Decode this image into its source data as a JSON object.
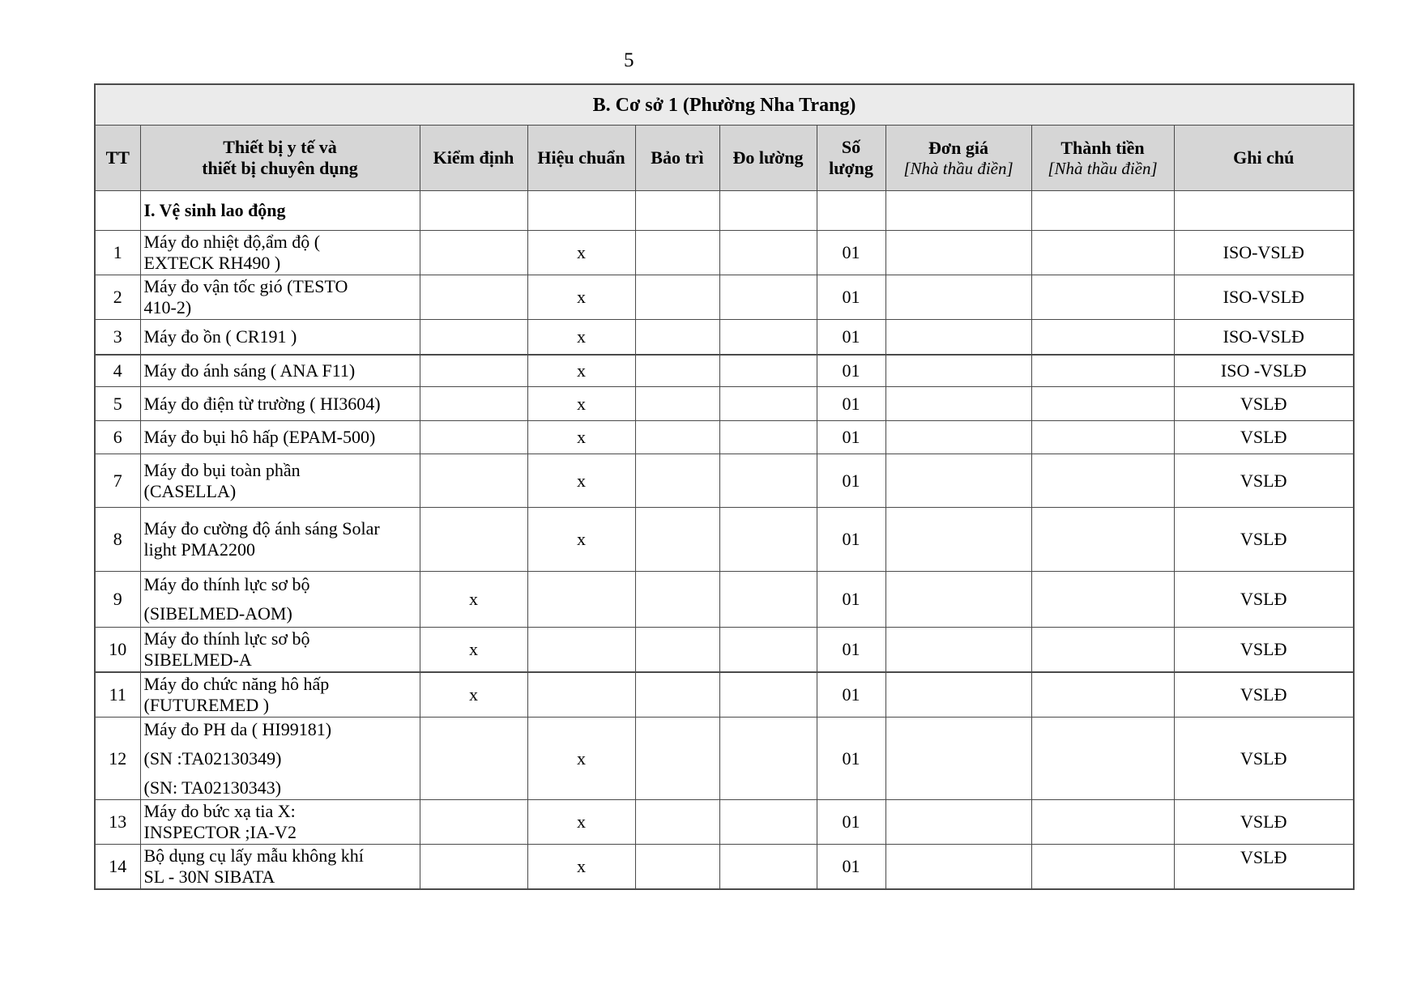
{
  "page": {
    "number": "5"
  },
  "banner": {
    "title": "B. Cơ sở 1 (Phường Nha Trang)"
  },
  "table": {
    "headers": {
      "tt": "TT",
      "device_line1": "Thiết bị y tế và",
      "device_line2": "thiết bị chuyên dụng",
      "kiem_dinh": "Kiểm định",
      "hieu_chuan": "Hiệu chuẩn",
      "bao_tri": "Bảo trì",
      "do_luong": "Đo lường",
      "so_luong_line1": "Số",
      "so_luong_line2": "lượng",
      "don_gia": "Đơn giá",
      "don_gia_sub": "[Nhà thầu điền]",
      "thanh_tien": "Thành tiền",
      "thanh_tien_sub": "[Nhà thầu điền]",
      "ghi_chu": "Ghi chú"
    },
    "section_title": "I. Vệ sinh lao động",
    "rows": [
      {
        "tt": "1",
        "device_lines": [
          "Máy đo nhiệt độ,ẩm độ (",
          "EXTECK RH490 )"
        ],
        "kiem_dinh": "",
        "hieu_chuan": "x",
        "bao_tri": "",
        "do_luong": "",
        "so_luong": "01",
        "don_gia": "",
        "thanh_tien": "",
        "ghi_chu": "ISO-VSLĐ"
      },
      {
        "tt": "2",
        "device_lines": [
          "Máy đo vận tốc gió (TESTO",
          "410-2)"
        ],
        "kiem_dinh": "",
        "hieu_chuan": "x",
        "bao_tri": "",
        "do_luong": "",
        "so_luong": "01",
        "don_gia": "",
        "thanh_tien": "",
        "ghi_chu": "ISO-VSLĐ"
      },
      {
        "tt": "3",
        "device_lines": [
          "Máy đo ồn ( CR191 )"
        ],
        "kiem_dinh": "",
        "hieu_chuan": "x",
        "bao_tri": "",
        "do_luong": "",
        "so_luong": "01",
        "don_gia": "",
        "thanh_tien": "",
        "ghi_chu": "ISO-VSLĐ"
      },
      {
        "tt": "4",
        "device_lines": [
          "Máy đo ánh sáng ( ANA F11)"
        ],
        "kiem_dinh": "",
        "hieu_chuan": "x",
        "bao_tri": "",
        "do_luong": "",
        "so_luong": "01",
        "don_gia": "",
        "thanh_tien": "",
        "ghi_chu": "ISO -VSLĐ"
      },
      {
        "tt": "5",
        "device_lines": [
          "Máy đo điện từ trường ( HI3604)"
        ],
        "kiem_dinh": "",
        "hieu_chuan": "x",
        "bao_tri": "",
        "do_luong": "",
        "so_luong": "01",
        "don_gia": "",
        "thanh_tien": "",
        "ghi_chu": "VSLĐ"
      },
      {
        "tt": "6",
        "device_lines": [
          "Máy đo bụi hô hấp (EPAM-500)"
        ],
        "kiem_dinh": "",
        "hieu_chuan": "x",
        "bao_tri": "",
        "do_luong": "",
        "so_luong": "01",
        "don_gia": "",
        "thanh_tien": "",
        "ghi_chu": "VSLĐ"
      },
      {
        "tt": "7",
        "device_lines": [
          "Máy đo bụi toàn phần",
          "(CASELLA)"
        ],
        "kiem_dinh": "",
        "hieu_chuan": "x",
        "bao_tri": "",
        "do_luong": "",
        "so_luong": "01",
        "don_gia": "",
        "thanh_tien": "",
        "ghi_chu": "VSLĐ"
      },
      {
        "tt": "8",
        "device_lines": [
          "Máy đo cường độ ánh sáng Solar",
          "light PMA2200"
        ],
        "kiem_dinh": "",
        "hieu_chuan": "x",
        "bao_tri": "",
        "do_luong": "",
        "so_luong": "01",
        "don_gia": "",
        "thanh_tien": "",
        "ghi_chu": "VSLĐ"
      },
      {
        "tt": "9",
        "device_lines": [
          "Máy đo thính lực sơ bộ",
          "",
          "(SIBELMED-AOM)"
        ],
        "kiem_dinh": "x",
        "hieu_chuan": "",
        "bao_tri": "",
        "do_luong": "",
        "so_luong": "01",
        "don_gia": "",
        "thanh_tien": "",
        "ghi_chu": "VSLĐ"
      },
      {
        "tt": "10",
        "device_lines": [
          "Máy đo thính lực sơ bộ",
          "SIBELMED-A"
        ],
        "kiem_dinh": "x",
        "hieu_chuan": "",
        "bao_tri": "",
        "do_luong": "",
        "so_luong": "01",
        "don_gia": "",
        "thanh_tien": "",
        "ghi_chu": "VSLĐ"
      },
      {
        "tt": "11",
        "device_lines": [
          "Máy đo chức năng hô hấp",
          "(FUTUREMED )"
        ],
        "kiem_dinh": "x",
        "hieu_chuan": "",
        "bao_tri": "",
        "do_luong": "",
        "so_luong": "01",
        "don_gia": "",
        "thanh_tien": "",
        "ghi_chu": "VSLĐ"
      },
      {
        "tt": "12",
        "device_lines": [
          "Máy đo PH da ( HI99181)",
          "",
          "(SN :TA02130349)",
          "",
          "(SN: TA02130343)"
        ],
        "kiem_dinh": "",
        "hieu_chuan": "x",
        "bao_tri": "",
        "do_luong": "",
        "so_luong": "01",
        "don_gia": "",
        "thanh_tien": "",
        "ghi_chu": "VSLĐ"
      },
      {
        "tt": "13",
        "device_lines": [
          "Máy đo bức xạ tia X:",
          "INSPECTOR ;IA-V2"
        ],
        "kiem_dinh": "",
        "hieu_chuan": "x",
        "bao_tri": "",
        "do_luong": "",
        "so_luong": "01",
        "don_gia": "",
        "thanh_tien": "",
        "ghi_chu": "VSLĐ"
      },
      {
        "tt": "14",
        "device_lines": [
          "Bộ dụng cụ lấy mẫu không khí",
          "SL - 30N SIBATA"
        ],
        "kiem_dinh": "",
        "hieu_chuan": "x",
        "bao_tri": "",
        "do_luong": "",
        "so_luong": "01",
        "don_gia": "",
        "thanh_tien": "",
        "ghi_chu": "VSLĐ"
      }
    ]
  }
}
